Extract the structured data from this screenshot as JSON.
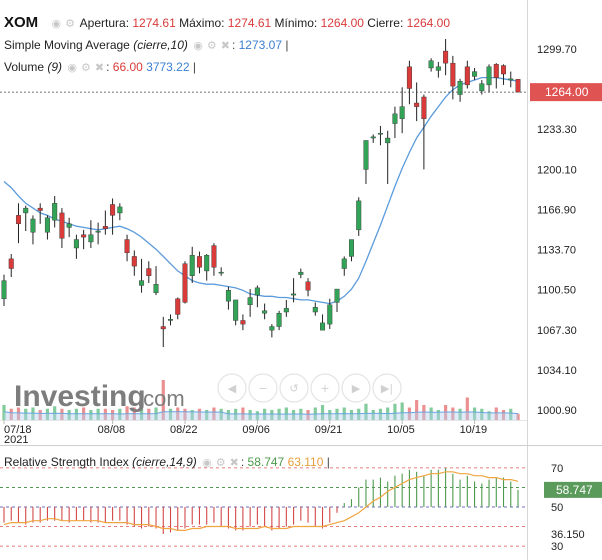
{
  "header": {
    "symbol": "XOM",
    "open_label": "Apertura:",
    "open": "1274.61",
    "high_label": "Máximo:",
    "high": "1274.61",
    "low_label": "Mínimo:",
    "low": "1264.00",
    "close_label": "Cierre:",
    "close": "1264.00"
  },
  "sma_legend": {
    "label": "Simple Moving Average",
    "params": "(cierre,10)",
    "value": "1273.07"
  },
  "volume_legend": {
    "label": "Volume",
    "params": "(9)",
    "value1": "66.00",
    "value2": "3773.22"
  },
  "rsi_legend": {
    "label": "Relative Strength Index",
    "params": "(cierre,14,9)",
    "value1": "58.747",
    "value2": "63.110"
  },
  "watermark": {
    "brand": "Investing",
    "suffix": ".com"
  },
  "colors": {
    "up": "#33a457",
    "down": "#d93a3a",
    "sma": "#5b9bdb",
    "rsi_signal": "#f0a540",
    "price_tag": "#e05353",
    "rsi_tag": "#5a9a5a",
    "volume_area": "#b7d3f0"
  },
  "icons": [
    "eye-icon",
    "gear-icon",
    "close-icon",
    "scroll-left-icon",
    "zoom-out-icon",
    "zoom-reset-icon",
    "zoom-in-icon",
    "scroll-right-icon",
    "scroll-end-icon"
  ],
  "chart_data": [
    {
      "type": "candlestick",
      "ylim": [
        985,
        1320
      ],
      "y_ticks": [
        1299.7,
        1266.5,
        1233.3,
        1200.1,
        1166.9,
        1133.7,
        1100.5,
        1067.3,
        1034.1,
        1000.9
      ],
      "y_tick_labels": [
        "1299.70",
        "1233.30",
        "1200.10",
        "1166.90",
        "1133.70",
        "1100.50",
        "1067.30",
        "1034.10",
        "1000.90"
      ],
      "last_price": "1264.00",
      "x_labels": [
        {
          "label": "07/18",
          "sublabel": "2021",
          "index": 0
        },
        {
          "label": "08/08",
          "index": 15
        },
        {
          "label": "08/22",
          "index": 25
        },
        {
          "label": "09/06",
          "index": 35
        },
        {
          "label": "09/21",
          "index": 45
        },
        {
          "label": "10/05",
          "index": 55
        },
        {
          "label": "10/19",
          "index": 65
        }
      ],
      "candles": [
        [
          1093,
          1113,
          1087,
          1108
        ],
        [
          1126,
          1130,
          1111,
          1118
        ],
        [
          1162,
          1172,
          1139,
          1155
        ],
        [
          1164,
          1170,
          1149,
          1168
        ],
        [
          1148,
          1162,
          1138,
          1159
        ],
        [
          1168,
          1172,
          1155,
          1166
        ],
        [
          1148,
          1162,
          1142,
          1160
        ],
        [
          1158,
          1178,
          1152,
          1172
        ],
        [
          1164,
          1168,
          1135,
          1143
        ],
        [
          1152,
          1160,
          1144,
          1155
        ],
        [
          1135,
          1146,
          1126,
          1142
        ],
        [
          1146,
          1150,
          1134,
          1144
        ],
        [
          1140,
          1158,
          1135,
          1146
        ],
        [
          1148,
          1156,
          1138,
          1149
        ],
        [
          1153,
          1166,
          1146,
          1151
        ],
        [
          1171,
          1176,
          1146,
          1162
        ],
        [
          1164,
          1172,
          1158,
          1169
        ],
        [
          1142,
          1146,
          1124,
          1131
        ],
        [
          1128,
          1133,
          1112,
          1120
        ],
        [
          1104,
          1126,
          1098,
          1108
        ],
        [
          1118,
          1124,
          1106,
          1112
        ],
        [
          1098,
          1120,
          1096,
          1105
        ],
        [
          1070,
          1078,
          1053,
          1068
        ],
        [
          1075,
          1080,
          1071,
          1076
        ],
        [
          1093,
          1094,
          1076,
          1080
        ],
        [
          1122,
          1124,
          1089,
          1090
        ],
        [
          1112,
          1136,
          1106,
          1129
        ],
        [
          1128,
          1132,
          1114,
          1119
        ],
        [
          1116,
          1130,
          1108,
          1129
        ],
        [
          1137,
          1139,
          1112,
          1119
        ],
        [
          1115,
          1119,
          1112,
          1115
        ],
        [
          1091,
          1103,
          1084,
          1100
        ],
        [
          1075,
          1092,
          1071,
          1092
        ],
        [
          1075,
          1080,
          1067,
          1072
        ],
        [
          1088,
          1101,
          1078,
          1094
        ],
        [
          1096,
          1104,
          1086,
          1102
        ],
        [
          1081,
          1089,
          1076,
          1083
        ],
        [
          1067,
          1072,
          1061,
          1070
        ],
        [
          1070,
          1083,
          1067,
          1081
        ],
        [
          1082,
          1092,
          1078,
          1085
        ],
        [
          1096,
          1110,
          1090,
          1097
        ],
        [
          1113,
          1118,
          1110,
          1115
        ],
        [
          1107,
          1110,
          1095,
          1100
        ],
        [
          1082,
          1090,
          1079,
          1086
        ],
        [
          1067,
          1080,
          1067,
          1073
        ],
        [
          1072,
          1093,
          1068,
          1088
        ],
        [
          1090,
          1101,
          1082,
          1101
        ],
        [
          1118,
          1128,
          1112,
          1126
        ],
        [
          1128,
          1142,
          1124,
          1142
        ],
        [
          1150,
          1177,
          1145,
          1174
        ],
        [
          1200,
          1224,
          1188,
          1224
        ],
        [
          1226,
          1229,
          1222,
          1227
        ],
        [
          1230,
          1236,
          1220,
          1230
        ],
        [
          1222,
          1232,
          1188,
          1226
        ],
        [
          1238,
          1252,
          1226,
          1246
        ],
        [
          1242,
          1268,
          1230,
          1252
        ],
        [
          1285,
          1290,
          1254,
          1267
        ],
        [
          1255,
          1272,
          1240,
          1252
        ],
        [
          1260,
          1262,
          1200,
          1242
        ],
        [
          1284,
          1292,
          1281,
          1290
        ],
        [
          1282,
          1289,
          1276,
          1285
        ],
        [
          1298,
          1308,
          1278,
          1288
        ],
        [
          1288,
          1294,
          1258,
          1269
        ],
        [
          1262,
          1275,
          1256,
          1273
        ],
        [
          1285,
          1290,
          1267,
          1270
        ],
        [
          1277,
          1284,
          1274,
          1281
        ],
        [
          1265,
          1274,
          1262,
          1271
        ],
        [
          1270,
          1287,
          1264,
          1285
        ],
        [
          1287,
          1288,
          1267,
          1276
        ],
        [
          1286,
          1287,
          1270,
          1279
        ],
        [
          1274,
          1281,
          1268,
          1275
        ],
        [
          1274.61,
          1274.61,
          1264,
          1264
        ]
      ]
    },
    {
      "type": "line",
      "name": "Simple Moving Average",
      "values": [
        1190,
        1185,
        1178,
        1172,
        1168,
        1164,
        1162,
        1159,
        1157,
        1155,
        1153,
        1152,
        1151,
        1150,
        1151,
        1152,
        1153,
        1151,
        1148,
        1144,
        1139,
        1134,
        1128,
        1122,
        1116,
        1112,
        1108,
        1106,
        1105,
        1105,
        1104,
        1103,
        1102,
        1100,
        1097,
        1096,
        1095,
        1095,
        1094,
        1094,
        1093,
        1092,
        1092,
        1091,
        1090,
        1089,
        1091,
        1095,
        1101,
        1110,
        1124,
        1139,
        1154,
        1170,
        1186,
        1201,
        1214,
        1226,
        1235,
        1244,
        1252,
        1260,
        1266,
        1270,
        1272,
        1274,
        1276,
        1276,
        1276,
        1275,
        1274,
        1273.07
      ]
    },
    {
      "type": "bar",
      "name": "Volume",
      "values": [
        1.2,
        0.9,
        1.0,
        0.9,
        1.0,
        0.8,
        0.9,
        1.1,
        0.9,
        0.8,
        0.9,
        1.0,
        0.8,
        0.9,
        0.9,
        0.8,
        0.9,
        1.1,
        1.0,
        0.9,
        0.9,
        1.0,
        3.2,
        0.9,
        1.0,
        0.9,
        0.8,
        0.9,
        0.8,
        1.0,
        0.9,
        0.8,
        0.9,
        1.0,
        0.8,
        0.7,
        0.9,
        0.8,
        0.9,
        1.0,
        0.8,
        0.9,
        0.8,
        1.0,
        1.2,
        0.8,
        0.9,
        1.0,
        0.8,
        0.9,
        1.3,
        0.8,
        0.9,
        1.0,
        1.3,
        1.4,
        1.0,
        1.6,
        1.2,
        1.0,
        0.8,
        1.2,
        1.0,
        0.9,
        1.8,
        1.0,
        0.9,
        0.7,
        1.0,
        0.8,
        0.9,
        0.5
      ]
    },
    {
      "type": "bar",
      "name": "Relative Strength Index",
      "ylim": [
        28,
        73
      ],
      "y_tick_labels": [
        "70",
        "50",
        "36.150",
        "30"
      ],
      "ref_lines": [
        70,
        60,
        50,
        40,
        30
      ],
      "last_value": "58.747",
      "values": [
        42,
        43,
        42,
        41,
        42,
        42,
        43,
        43,
        43,
        42,
        43,
        43,
        42,
        42,
        42,
        43,
        43,
        41,
        40,
        39,
        40,
        39,
        36.2,
        37,
        38,
        39,
        41,
        41,
        41,
        42,
        40,
        39,
        38,
        38,
        40,
        41,
        40,
        38,
        39,
        40,
        41,
        43,
        42,
        40,
        39,
        42,
        47,
        52,
        54,
        60,
        64,
        64,
        65,
        63,
        66,
        67,
        69,
        68,
        66,
        69,
        69,
        70,
        67,
        64,
        66,
        63,
        62,
        64,
        65,
        65,
        63,
        58.747
      ],
      "signal": [
        41,
        42,
        42,
        42,
        43,
        43,
        44,
        44,
        43,
        43,
        43,
        43,
        43,
        43,
        42,
        42,
        42,
        42,
        41,
        41,
        41,
        40,
        39,
        39,
        38,
        38,
        39,
        39,
        40,
        40,
        40,
        40,
        39,
        39,
        39,
        39,
        40,
        39,
        39,
        39,
        40,
        40,
        40,
        40,
        40,
        41,
        42,
        43,
        45,
        47,
        50,
        53,
        55,
        58,
        60,
        62,
        64,
        65,
        66,
        67,
        67,
        68,
        68,
        67,
        67,
        66,
        66,
        65,
        65,
        64,
        64,
        63.11
      ]
    }
  ]
}
